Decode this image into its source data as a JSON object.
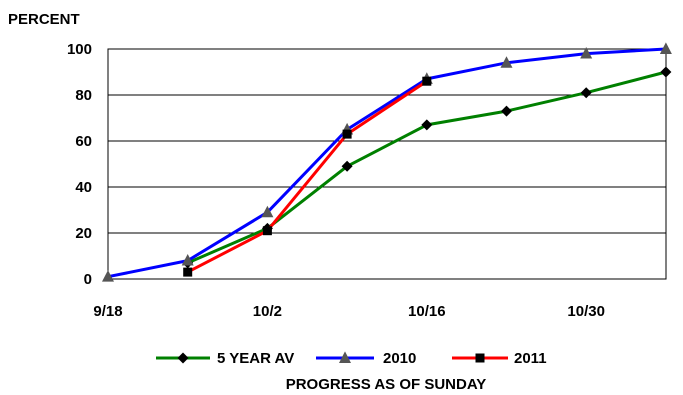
{
  "chart_data": {
    "type": "line",
    "ylabel": "PERCENT",
    "xlabel": "PROGRESS AS OF SUNDAY",
    "ylim": [
      0,
      100
    ],
    "yticks": [
      0,
      20,
      40,
      60,
      80,
      100
    ],
    "x_categories": [
      "9/18",
      "9/25",
      "10/2",
      "10/9",
      "10/16",
      "10/23",
      "10/30",
      "11/6"
    ],
    "xtick_labels": [
      "9/18",
      "10/2",
      "10/16",
      "10/30"
    ],
    "xtick_indices": [
      0,
      2,
      4,
      6
    ],
    "grid": true,
    "legend_position": "bottom",
    "series": [
      {
        "name": "5 YEAR AV",
        "color": "#008000",
        "marker": "diamond",
        "x": [
          "9/25",
          "10/2",
          "10/9",
          "10/16",
          "10/23",
          "10/30",
          "11/6"
        ],
        "values": [
          7,
          22,
          49,
          67,
          73,
          81,
          90
        ]
      },
      {
        "name": "2010",
        "color": "#0000ff",
        "marker": "triangle",
        "x": [
          "9/18",
          "9/25",
          "10/2",
          "10/9",
          "10/16",
          "10/23",
          "10/30",
          "11/6"
        ],
        "values": [
          1,
          8,
          29,
          65,
          87,
          94,
          98,
          100
        ]
      },
      {
        "name": "2011",
        "color": "#ff0000",
        "marker": "square",
        "x": [
          "9/25",
          "10/2",
          "10/9",
          "10/16"
        ],
        "values": [
          3,
          21,
          63,
          86
        ]
      }
    ]
  }
}
